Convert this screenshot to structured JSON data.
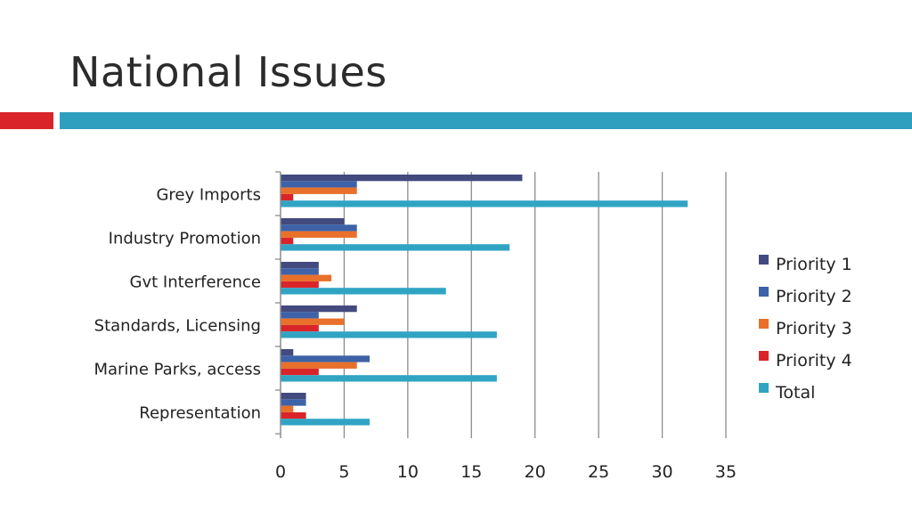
{
  "slide": {
    "title": "National Issues"
  },
  "colors": {
    "accent_red": "#d9252a",
    "accent_teal": "#2e9fbf",
    "gridline": "#8c8c8c",
    "axis": "#8c8c8c"
  },
  "chart_data": {
    "type": "bar",
    "orientation": "horizontal",
    "title": "",
    "xlabel": "",
    "ylabel": "",
    "categories": [
      "Grey Imports",
      "Industry Promotion",
      "Gvt Interference",
      "Standards, Licensing",
      "Marine Parks, access",
      "Representation"
    ],
    "xlim": [
      0,
      35
    ],
    "xticks": [
      0,
      5,
      10,
      15,
      20,
      25,
      30,
      35
    ],
    "grid": "vertical",
    "legend": "right",
    "series": [
      {
        "name": "Priority 1",
        "color": "#434a7e",
        "values": [
          19,
          5,
          3,
          6,
          1,
          2
        ]
      },
      {
        "name": "Priority 2",
        "color": "#3d62a8",
        "values": [
          6,
          6,
          3,
          3,
          7,
          2
        ]
      },
      {
        "name": "Priority 3",
        "color": "#e8702a",
        "values": [
          6,
          6,
          4,
          5,
          6,
          1
        ]
      },
      {
        "name": "Priority 4",
        "color": "#d9252a",
        "values": [
          1,
          1,
          3,
          3,
          3,
          2
        ]
      },
      {
        "name": "Total",
        "color": "#31a4c4",
        "values": [
          32,
          18,
          13,
          17,
          17,
          7
        ]
      }
    ]
  }
}
